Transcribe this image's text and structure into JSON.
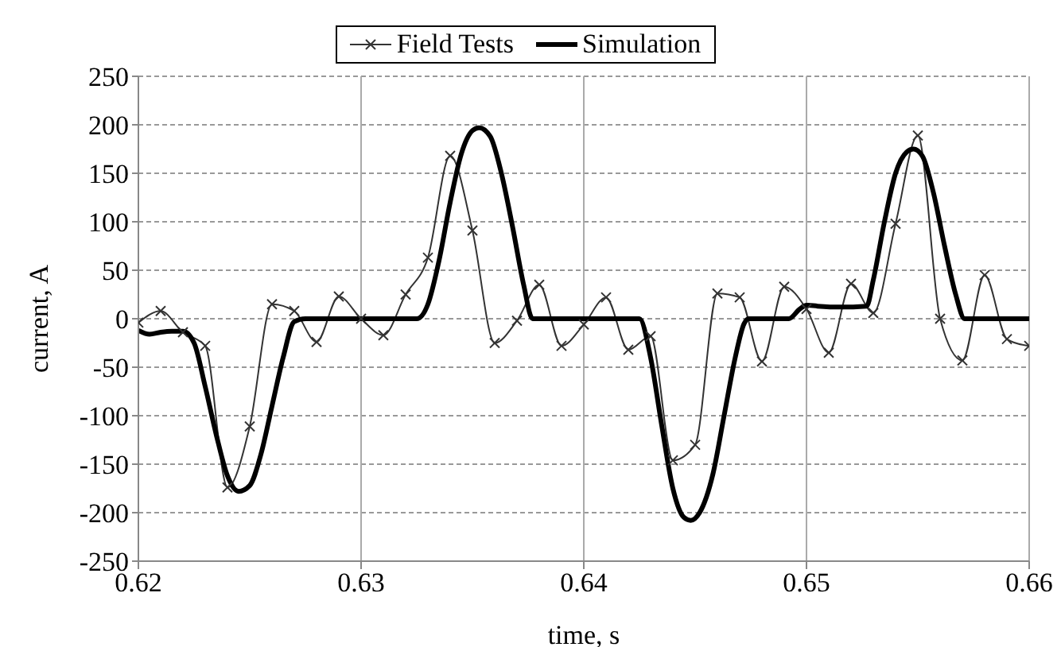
{
  "chart_data": {
    "type": "line",
    "xlabel": "time, s",
    "ylabel": "current, A",
    "xlim": [
      0.62,
      0.66
    ],
    "xticks": [
      0.62,
      0.63,
      0.64,
      0.65,
      0.66
    ],
    "ylim": [
      -250,
      250
    ],
    "yticks": [
      -250,
      -200,
      -150,
      -100,
      -50,
      0,
      50,
      100,
      150,
      200,
      250
    ],
    "grid": true,
    "legend": "top",
    "series": [
      {
        "name": "Field Tests",
        "color": "#333333",
        "marker": "cross",
        "line_style": "solid",
        "x": [
          0.62,
          0.621,
          0.622,
          0.623,
          0.624,
          0.625,
          0.626,
          0.627,
          0.628,
          0.629,
          0.63,
          0.631,
          0.632,
          0.633,
          0.634,
          0.635,
          0.636,
          0.637,
          0.638,
          0.639,
          0.64,
          0.641,
          0.642,
          0.643,
          0.644,
          0.645,
          0.646,
          0.647,
          0.648,
          0.649,
          0.65,
          0.651,
          0.652,
          0.653,
          0.654,
          0.655,
          0.656,
          0.657,
          0.658,
          0.659,
          0.66
        ],
        "values": [
          -4,
          8,
          -14,
          -28,
          -174,
          -111,
          15,
          8,
          -24,
          23,
          0,
          -17,
          25,
          63,
          168,
          91,
          -25,
          -2,
          35,
          -28,
          -6,
          22,
          -32,
          -18,
          -146,
          -130,
          26,
          22,
          -44,
          33,
          10,
          -35,
          36,
          6,
          98,
          189,
          0,
          -43,
          45,
          -21,
          -28
        ]
      },
      {
        "name": "Simulation",
        "color": "#000000",
        "marker": "none",
        "line_style": "solid",
        "x": [
          0.62,
          0.6205,
          0.621,
          0.6215,
          0.622,
          0.6225,
          0.623,
          0.6235,
          0.624,
          0.6245,
          0.625,
          0.6255,
          0.626,
          0.6265,
          0.627,
          0.6275,
          0.6325,
          0.633,
          0.6335,
          0.634,
          0.6345,
          0.635,
          0.6353,
          0.6358,
          0.6363,
          0.6368,
          0.6373,
          0.6377,
          0.6425,
          0.643,
          0.6435,
          0.644,
          0.6445,
          0.6448,
          0.6452,
          0.6458,
          0.6463,
          0.6468,
          0.6472,
          0.6474,
          0.6492,
          0.6497,
          0.65,
          0.6505,
          0.6515,
          0.6527,
          0.653,
          0.6535,
          0.654,
          0.6545,
          0.6548,
          0.6552,
          0.6557,
          0.6562,
          0.6567,
          0.6571,
          0.66
        ],
        "values": [
          -12,
          -16,
          -14,
          -13,
          -13,
          -25,
          -70,
          -120,
          -162,
          -178,
          -172,
          -140,
          -90,
          -40,
          -3,
          0,
          0,
          15,
          60,
          120,
          170,
          194,
          197,
          188,
          150,
          95,
          35,
          0,
          0,
          -40,
          -110,
          -175,
          -205,
          -208,
          -200,
          -160,
          -100,
          -40,
          -5,
          0,
          0,
          10,
          14,
          13,
          12,
          13,
          40,
          100,
          150,
          172,
          175,
          168,
          130,
          75,
          25,
          0,
          0
        ]
      }
    ]
  }
}
